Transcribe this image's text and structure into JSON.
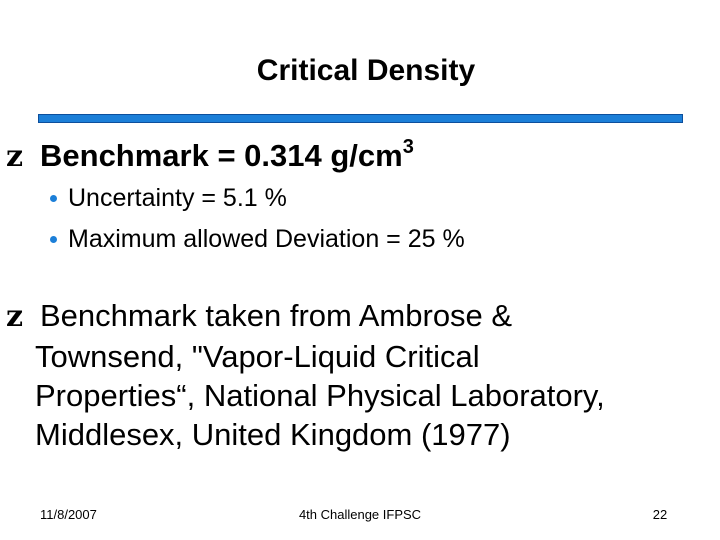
{
  "slide": {
    "title": "Critical Density",
    "accent_color": "#1c7fd8",
    "bullets": [
      {
        "marker_icon": "z-bullet-icon",
        "text": "Benchmark = 0.314 g/cm",
        "superscript": "3",
        "sub_items": [
          "Uncertainty = 5.1 %",
          "Maximum allowed Deviation = 25 %"
        ]
      },
      {
        "marker_icon": "z-bullet-icon",
        "lines": [
          "Benchmark taken from Ambrose &",
          "Townsend, \"Vapor-Liquid Critical",
          "Properties“, National Physical Laboratory,",
          "Middlesex, United Kingdom (1977)"
        ]
      }
    ],
    "bullet_glyph": "z",
    "footer": {
      "date": "11/8/2007",
      "center": "4th Challenge IFPSC",
      "page_number": "22"
    }
  }
}
